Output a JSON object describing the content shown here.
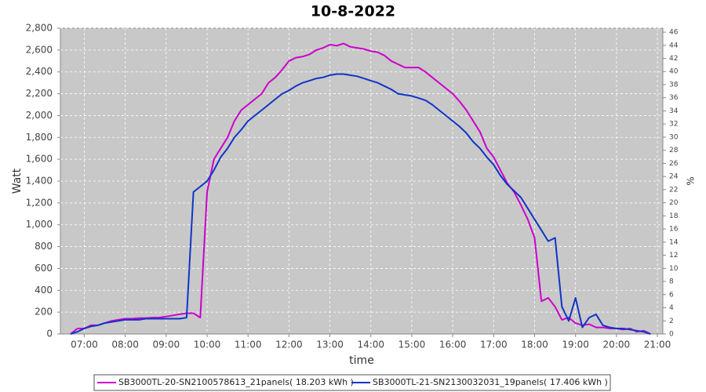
{
  "chart_data": {
    "type": "line",
    "title": "10-8-2022",
    "x_label": "time",
    "y_label": "Watt",
    "y2_label": "%",
    "x": [
      "06:40",
      "06:50",
      "07:00",
      "07:10",
      "07:20",
      "07:30",
      "07:40",
      "07:50",
      "08:00",
      "08:10",
      "08:20",
      "08:30",
      "08:40",
      "08:50",
      "09:00",
      "09:10",
      "09:20",
      "09:30",
      "09:40",
      "09:50",
      "10:00",
      "10:10",
      "10:20",
      "10:30",
      "10:40",
      "10:50",
      "11:00",
      "11:10",
      "11:20",
      "11:30",
      "11:40",
      "11:50",
      "12:00",
      "12:10",
      "12:20",
      "12:30",
      "12:40",
      "12:50",
      "13:00",
      "13:10",
      "13:20",
      "13:30",
      "13:40",
      "13:50",
      "14:00",
      "14:10",
      "14:20",
      "14:30",
      "14:40",
      "14:50",
      "15:00",
      "15:10",
      "15:20",
      "15:30",
      "15:40",
      "15:50",
      "16:00",
      "16:10",
      "16:20",
      "16:30",
      "16:40",
      "16:50",
      "17:00",
      "17:10",
      "17:20",
      "17:30",
      "17:40",
      "17:50",
      "18:00",
      "18:10",
      "18:20",
      "18:30",
      "18:40",
      "18:50",
      "19:00",
      "19:10",
      "19:20",
      "19:30",
      "19:40",
      "19:50",
      "20:00",
      "20:10",
      "20:20",
      "20:30",
      "20:40",
      "20:50"
    ],
    "xlim": [
      "06:25",
      "21:08"
    ],
    "xticks": [
      "07:00",
      "08:00",
      "09:00",
      "10:00",
      "11:00",
      "12:00",
      "13:00",
      "14:00",
      "15:00",
      "16:00",
      "17:00",
      "18:00",
      "19:00",
      "20:00",
      "21:00"
    ],
    "ylim": [
      0,
      2800
    ],
    "yticks": [
      0,
      200,
      400,
      600,
      800,
      {
        "value": 1000,
        "label": "1,000"
      },
      {
        "value": 1200,
        "label": "1,200"
      },
      {
        "value": 1400,
        "label": "1,400"
      },
      {
        "value": 1600,
        "label": "1,600"
      },
      {
        "value": 1800,
        "label": "1,800"
      },
      {
        "value": 2000,
        "label": "2,000"
      },
      {
        "value": 2200,
        "label": "2,200"
      },
      {
        "value": 2400,
        "label": "2,400"
      },
      {
        "value": 2600,
        "label": "2,600"
      },
      {
        "value": 2800,
        "label": "2,800"
      }
    ],
    "y2lim": [
      0,
      46.6
    ],
    "y2ticks": [
      0,
      2,
      4,
      6,
      8,
      10,
      12,
      14,
      16,
      18,
      20,
      22,
      24,
      26,
      28,
      30,
      32,
      34,
      36,
      38,
      40,
      42,
      44,
      46
    ],
    "grid": true,
    "series": [
      {
        "name": "SB3000TL-20-SN2100578613_21panels( 18.203 kWh )",
        "color": "#cc00cc",
        "values": [
          0,
          50,
          50,
          80,
          80,
          100,
          120,
          130,
          140,
          140,
          145,
          145,
          150,
          150,
          160,
          170,
          180,
          190,
          190,
          150,
          1300,
          1600,
          1700,
          1800,
          1950,
          2050,
          2100,
          2150,
          2200,
          2300,
          2350,
          2420,
          2500,
          2530,
          2540,
          2560,
          2600,
          2620,
          2650,
          2640,
          2660,
          2630,
          2620,
          2610,
          2590,
          2580,
          2550,
          2500,
          2470,
          2440,
          2440,
          2440,
          2400,
          2350,
          2300,
          2250,
          2200,
          2130,
          2050,
          1950,
          1850,
          1700,
          1620,
          1500,
          1380,
          1300,
          1180,
          1050,
          880,
          300,
          330,
          250,
          130,
          150,
          100,
          80,
          90,
          60,
          60,
          50,
          50,
          40,
          50,
          20,
          30,
          0
        ]
      },
      {
        "name": "SB3000TL-21-SN2130032031_19panels( 17.406 kWh )",
        "color": "#1034c8",
        "values": [
          0,
          20,
          50,
          70,
          80,
          100,
          110,
          120,
          130,
          130,
          130,
          140,
          140,
          140,
          140,
          140,
          140,
          150,
          1300,
          1350,
          1400,
          1500,
          1620,
          1700,
          1800,
          1870,
          1950,
          2000,
          2050,
          2100,
          2150,
          2200,
          2230,
          2270,
          2300,
          2320,
          2340,
          2350,
          2370,
          2380,
          2380,
          2370,
          2360,
          2340,
          2320,
          2300,
          2270,
          2240,
          2200,
          2190,
          2180,
          2160,
          2140,
          2100,
          2050,
          2000,
          1950,
          1900,
          1840,
          1760,
          1700,
          1620,
          1550,
          1450,
          1370,
          1310,
          1250,
          1150,
          1050,
          950,
          850,
          880,
          250,
          120,
          330,
          60,
          150,
          180,
          80,
          60,
          50,
          50,
          40,
          30,
          20,
          0
        ]
      }
    ]
  }
}
